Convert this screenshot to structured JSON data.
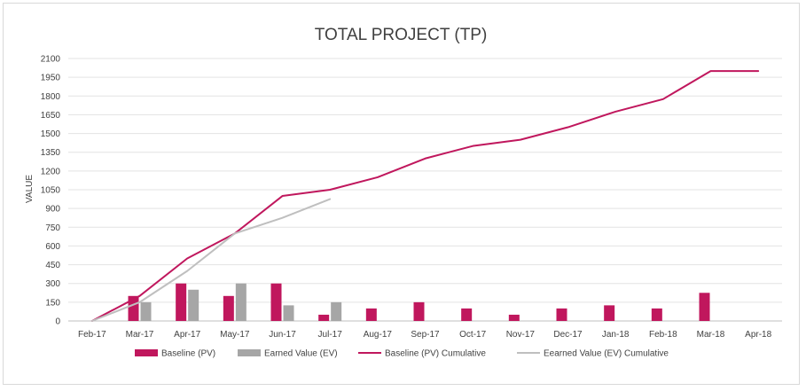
{
  "chart_data": {
    "type": "bar",
    "title": "TOTAL PROJECT (TP)",
    "xlabel": "",
    "ylabel": "VALUE",
    "ylim": [
      0,
      2100
    ],
    "yticks": [
      0,
      150,
      300,
      450,
      600,
      750,
      900,
      1050,
      1200,
      1350,
      1500,
      1650,
      1800,
      1950,
      2100
    ],
    "grid": true,
    "legend_position": "bottom",
    "categories": [
      "Feb-17",
      "Mar-17",
      "Apr-17",
      "May-17",
      "Jun-17",
      "Jul-17",
      "Aug-17",
      "Sep-17",
      "Oct-17",
      "Nov-17",
      "Dec-17",
      "Jan-18",
      "Feb-18",
      "Mar-18",
      "Apr-18"
    ],
    "series": [
      {
        "name": "Baseline (PV)",
        "kind": "bar",
        "color": "#c0175d",
        "values": [
          0,
          200,
          300,
          200,
          300,
          50,
          100,
          150,
          100,
          50,
          100,
          125,
          100,
          225,
          0
        ]
      },
      {
        "name": "Earned Value (EV)",
        "kind": "bar",
        "color": "#a6a6a6",
        "values": [
          0,
          150,
          250,
          300,
          125,
          150,
          null,
          null,
          null,
          null,
          null,
          null,
          null,
          null,
          null
        ]
      },
      {
        "name": "Baseline (PV) Cumulative",
        "kind": "line",
        "color": "#c0175d",
        "values": [
          0,
          200,
          500,
          700,
          1000,
          1050,
          1150,
          1300,
          1400,
          1450,
          1550,
          1675,
          1775,
          2000,
          2000
        ]
      },
      {
        "name": "Eearned Value (EV) Cumulative",
        "kind": "line",
        "color": "#bfbfbf",
        "values": [
          0,
          150,
          400,
          700,
          825,
          975,
          null,
          null,
          null,
          null,
          null,
          null,
          null,
          null,
          null
        ]
      }
    ]
  }
}
